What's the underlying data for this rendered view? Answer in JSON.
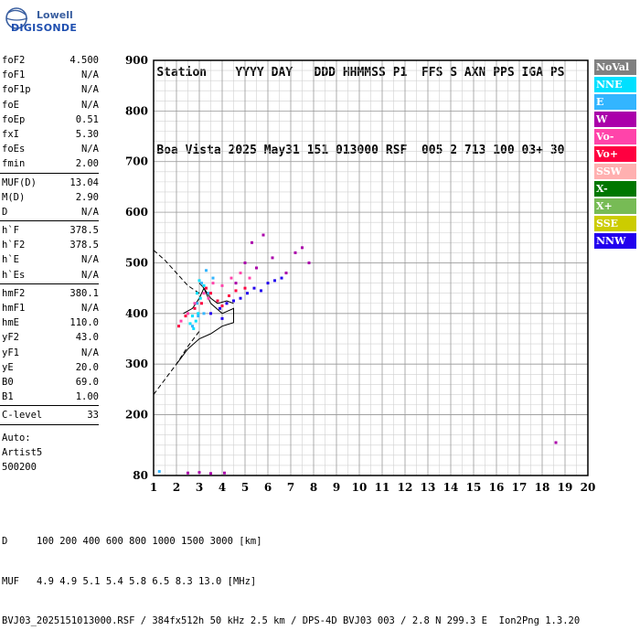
{
  "logo": {
    "line1": "Lowell",
    "line2": "DIGISONDE"
  },
  "header": {
    "labels": [
      "Station",
      "YYYY",
      "DAY",
      "DDD",
      "HHMMSS",
      "P1",
      "FFS",
      "S",
      "AXN",
      "PPS",
      "IGA",
      "PS"
    ],
    "values": [
      "Boa Vista",
      "2025",
      "May31",
      "151",
      "013000",
      "RSF",
      "005",
      "2",
      "713",
      "100",
      "03+",
      "30"
    ]
  },
  "params": [
    {
      "k": "foF2",
      "v": "4.500"
    },
    {
      "k": "foF1",
      "v": "N/A"
    },
    {
      "k": "foF1p",
      "v": "N/A"
    },
    {
      "k": "foE",
      "v": "N/A"
    },
    {
      "k": "foEp",
      "v": "0.51"
    },
    {
      "k": "fxI",
      "v": "5.30"
    },
    {
      "k": "foEs",
      "v": "N/A"
    },
    {
      "k": "fmin",
      "v": "2.00"
    },
    {
      "sep": true
    },
    {
      "k": "MUF(D)",
      "v": "13.04"
    },
    {
      "k": "M(D)",
      "v": "2.90"
    },
    {
      "k": "D",
      "v": "N/A"
    },
    {
      "sep": true
    },
    {
      "k": "h`F",
      "v": "378.5"
    },
    {
      "k": "h`F2",
      "v": "378.5"
    },
    {
      "k": "h`E",
      "v": "N/A"
    },
    {
      "k": "h`Es",
      "v": "N/A"
    },
    {
      "sep": true
    },
    {
      "k": "hmF2",
      "v": "380.1"
    },
    {
      "k": "hmF1",
      "v": "N/A"
    },
    {
      "k": "hmE",
      "v": "110.0"
    },
    {
      "k": "yF2",
      "v": "43.0"
    },
    {
      "k": "yF1",
      "v": "N/A"
    },
    {
      "k": "yE",
      "v": "20.0"
    },
    {
      "k": "B0",
      "v": "69.0"
    },
    {
      "k": "B1",
      "v": "1.00"
    },
    {
      "sep": true
    },
    {
      "k": "C-level",
      "v": "33"
    },
    {
      "sep": true
    }
  ],
  "auto": {
    "line1": "Auto:",
    "line2": "Artist5",
    "line3": "500200"
  },
  "legend": [
    {
      "label": "NoVal",
      "color": "#808080"
    },
    {
      "label": "NNE",
      "color": "#00e0ff"
    },
    {
      "label": "E",
      "color": "#33b5ff"
    },
    {
      "label": "W",
      "color": "#aa00aa"
    },
    {
      "label": "Vo-",
      "color": "#ff44aa"
    },
    {
      "label": "Vo+",
      "color": "#ff0040"
    },
    {
      "label": "SSW",
      "color": "#ffb0b0"
    },
    {
      "label": "X-",
      "color": "#007700"
    },
    {
      "label": "X+",
      "color": "#77bb55"
    },
    {
      "label": "SSE",
      "color": "#cccc00"
    },
    {
      "label": "NNW",
      "color": "#2200ee"
    }
  ],
  "footer": {
    "d_label": "D",
    "d_values": [
      "100",
      "200",
      "400",
      "600",
      "800",
      "1000",
      "1500",
      "3000"
    ],
    "d_unit": "[km]",
    "muf_label": "MUF",
    "muf_values": [
      "4.9",
      "4.9",
      "5.1",
      "5.4",
      "5.8",
      "6.5",
      "8.3",
      "13.0"
    ],
    "muf_unit": "[MHz]",
    "info": "BVJ03_2025151013000.RSF / 384fx512h 50 kHz 2.5 km / DPS-4D BVJ03 003 / 2.8 N 299.3 E  Ion2Png 1.3.20"
  },
  "chart_data": {
    "type": "scatter",
    "xlim": [
      1,
      20
    ],
    "ylim": [
      80,
      900
    ],
    "x_ticks": [
      1,
      2,
      3,
      4,
      5,
      6,
      7,
      8,
      9,
      10,
      11,
      12,
      13,
      14,
      15,
      16,
      17,
      18,
      19,
      20
    ],
    "y_ticks": [
      80,
      200,
      300,
      400,
      500,
      600,
      700,
      800,
      900
    ],
    "grid": true,
    "series": [
      {
        "name": "NNE",
        "color": "#00e0ff",
        "points": [
          [
            2.6,
            380
          ],
          [
            2.7,
            395
          ],
          [
            2.8,
            410
          ],
          [
            2.9,
            440
          ],
          [
            3.0,
            465
          ],
          [
            2.75,
            370
          ],
          [
            2.85,
            385
          ],
          [
            3.05,
            430
          ],
          [
            3.2,
            455
          ],
          [
            2.95,
            400
          ]
        ]
      },
      {
        "name": "E",
        "color": "#33b5ff",
        "points": [
          [
            1.25,
            88
          ],
          [
            2.7,
            375
          ],
          [
            2.9,
            420
          ],
          [
            3.1,
            460
          ],
          [
            3.3,
            485
          ],
          [
            3.2,
            400
          ],
          [
            3.4,
            440
          ],
          [
            3.6,
            470
          ],
          [
            2.95,
            395
          ]
        ]
      },
      {
        "name": "W",
        "color": "#aa00aa",
        "points": [
          [
            2.5,
            85
          ],
          [
            3.0,
            86
          ],
          [
            3.5,
            84
          ],
          [
            4.1,
            85
          ],
          [
            5.0,
            500
          ],
          [
            5.3,
            540
          ],
          [
            5.8,
            555
          ],
          [
            6.2,
            510
          ],
          [
            6.8,
            480
          ],
          [
            7.2,
            520
          ],
          [
            7.5,
            530
          ],
          [
            7.8,
            500
          ],
          [
            18.6,
            145
          ],
          [
            4.6,
            460
          ],
          [
            5.5,
            490
          ]
        ]
      },
      {
        "name": "Vo-",
        "color": "#ff44aa",
        "points": [
          [
            2.2,
            385
          ],
          [
            2.5,
            400
          ],
          [
            2.8,
            420
          ],
          [
            3.2,
            440
          ],
          [
            3.6,
            460
          ],
          [
            4.0,
            455
          ],
          [
            4.4,
            470
          ],
          [
            4.8,
            480
          ],
          [
            5.2,
            470
          ],
          [
            3.4,
            430
          ],
          [
            4.2,
            420
          ]
        ]
      },
      {
        "name": "Vo+",
        "color": "#ff0040",
        "points": [
          [
            2.1,
            375
          ],
          [
            2.4,
            395
          ],
          [
            2.8,
            410
          ],
          [
            3.1,
            420
          ],
          [
            3.3,
            450
          ],
          [
            3.5,
            440
          ],
          [
            3.8,
            425
          ],
          [
            4.0,
            415
          ],
          [
            4.3,
            435
          ],
          [
            4.6,
            445
          ],
          [
            5.0,
            450
          ]
        ]
      },
      {
        "name": "NNW",
        "color": "#2200ee",
        "points": [
          [
            3.5,
            400
          ],
          [
            3.9,
            410
          ],
          [
            4.2,
            420
          ],
          [
            4.5,
            425
          ],
          [
            4.8,
            430
          ],
          [
            5.1,
            440
          ],
          [
            5.4,
            450
          ],
          [
            5.7,
            445
          ],
          [
            6.0,
            460
          ],
          [
            6.3,
            465
          ],
          [
            6.6,
            470
          ],
          [
            4.0,
            390
          ]
        ]
      }
    ],
    "lines": [
      {
        "name": "dashed-trace",
        "style": "dashed",
        "points": [
          [
            1,
            525
          ],
          [
            1.5,
            505
          ],
          [
            2,
            480
          ],
          [
            2.5,
            455
          ],
          [
            3,
            440
          ]
        ]
      },
      {
        "name": "dashed-lower",
        "style": "dashed",
        "points": [
          [
            1,
            240
          ],
          [
            1.5,
            270
          ],
          [
            2,
            300
          ],
          [
            2.5,
            335
          ],
          [
            3,
            365
          ]
        ]
      },
      {
        "name": "solid-profile",
        "style": "solid",
        "points": [
          [
            2,
            300
          ],
          [
            2.5,
            330
          ],
          [
            3,
            350
          ],
          [
            3.5,
            360
          ],
          [
            4,
            375
          ],
          [
            4.5,
            382
          ],
          [
            4.5,
            410
          ],
          [
            4,
            400
          ],
          [
            3.5,
            420
          ],
          [
            3.2,
            450
          ],
          [
            3.0,
            460
          ]
        ]
      },
      {
        "name": "solid-trace",
        "style": "solid",
        "points": [
          [
            2.3,
            400
          ],
          [
            2.7,
            410
          ],
          [
            3.0,
            430
          ],
          [
            3.2,
            450
          ],
          [
            3.5,
            430
          ],
          [
            3.8,
            420
          ],
          [
            4.2,
            425
          ],
          [
            4.5,
            420
          ]
        ]
      }
    ]
  }
}
